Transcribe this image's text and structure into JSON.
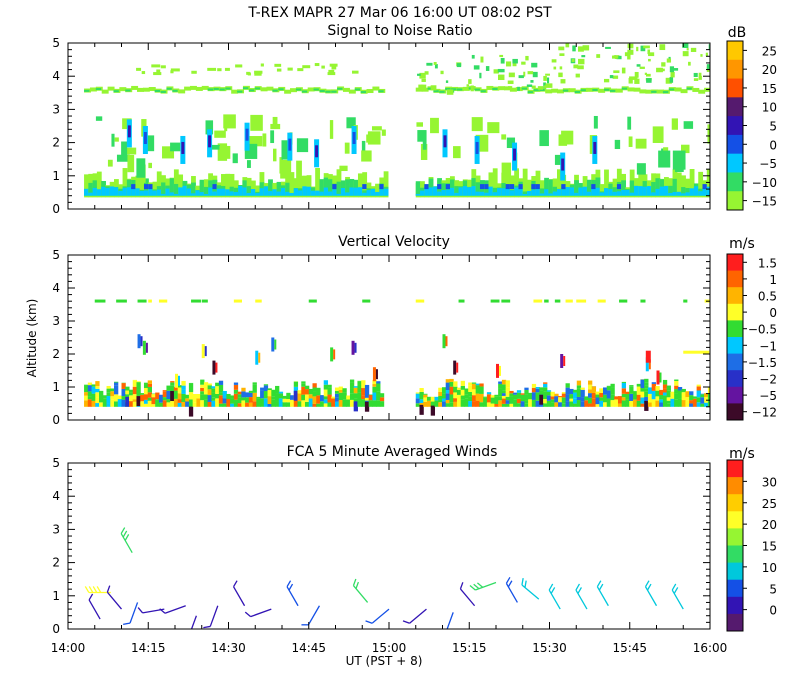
{
  "chart_data": {
    "type": "heatmap",
    "title": "T-REX   MAPR 27 Mar 06   16:00 UT   08:02   PST",
    "xlabel": "UT  (PST + 8)",
    "ylabel": "Altitude  (km)",
    "x_ticks": [
      "14:00",
      "14:15",
      "14:30",
      "14:45",
      "15:00",
      "15:15",
      "15:30",
      "15:45",
      "16:00"
    ],
    "y_ticks": [
      "0",
      "1",
      "2",
      "3",
      "4",
      "5"
    ],
    "xlim_minutes": [
      0,
      120
    ],
    "ylim_km": [
      0,
      5
    ],
    "panels": [
      {
        "title": "Signal to Noise Ratio",
        "unit": "dB",
        "colorbar": {
          "labels": [
            "25",
            "20",
            "15",
            "10",
            "5",
            "0",
            "−5",
            "−10",
            "−15"
          ],
          "colors": [
            "#ffc800",
            "#ff9600",
            "#ff5000",
            "#551a6e",
            "#3214b4",
            "#1450e6",
            "#00c8ff",
            "#32dc64",
            "#96f532"
          ]
        },
        "data_gap_minutes": [
          59,
          65
        ],
        "features": [
          {
            "label": "boundary layer echo",
            "alt_km": [
              0.4,
              1.3
            ],
            "value_db": -2
          },
          {
            "label": "cloud band",
            "alt_km": [
              3.5,
              3.7
            ],
            "value_db": -10
          },
          {
            "label": "upper level echoes",
            "alt_km": [
              3.8,
              5.0
            ],
            "value_db": -13
          }
        ]
      },
      {
        "title": "Vertical Velocity",
        "unit": "m/s",
        "colorbar": {
          "labels": [
            "1.5",
            "1",
            "0.5",
            "0",
            "−0.5",
            "−1",
            "−1.5",
            "−2",
            "−5",
            "−12"
          ],
          "colors": [
            "#ff1e1e",
            "#ff6400",
            "#ffb400",
            "#ffff28",
            "#32dc32",
            "#00c8ff",
            "#1e6ee6",
            "#2830c8",
            "#6414a0",
            "#3c0a28"
          ]
        },
        "data_gap_minutes": [
          59,
          65
        ]
      },
      {
        "title": "FCA 5 Minute Averaged Winds",
        "unit": "m/s",
        "colorbar": {
          "labels": [
            "30",
            "25",
            "20",
            "15",
            "10",
            "5",
            "0"
          ],
          "colors": [
            "#ff1e1e",
            "#ff8c00",
            "#ffcd00",
            "#ffff28",
            "#96f532",
            "#32dc64",
            "#00c8dc",
            "#1450e6",
            "#3214b4",
            "#551a6e"
          ]
        },
        "wind_barbs": [
          {
            "t": 6,
            "alt": 0.3,
            "speed": 5,
            "dir": 330
          },
          {
            "t": 8,
            "alt": 1.1,
            "speed": 20,
            "dir": 270
          },
          {
            "t": 10,
            "alt": 0.6,
            "speed": 5,
            "dir": 320
          },
          {
            "t": 12,
            "alt": 2.3,
            "speed": 13,
            "dir": 330
          },
          {
            "t": 13,
            "alt": 0.8,
            "speed": 6,
            "dir": 200
          },
          {
            "t": 18,
            "alt": 0.6,
            "speed": 5,
            "dir": 260
          },
          {
            "t": 22,
            "alt": 0.7,
            "speed": 4,
            "dir": 250
          },
          {
            "t": 24,
            "alt": 0.4,
            "speed": 4,
            "dir": 200
          },
          {
            "t": 28,
            "alt": 0.7,
            "speed": 5,
            "dir": 200
          },
          {
            "t": 33,
            "alt": 0.7,
            "speed": 4,
            "dir": 330
          },
          {
            "t": 38,
            "alt": 0.6,
            "speed": 5,
            "dir": 250
          },
          {
            "t": 43,
            "alt": 0.7,
            "speed": 8,
            "dir": 330
          },
          {
            "t": 47,
            "alt": 0.7,
            "speed": 7,
            "dir": 210
          },
          {
            "t": 56,
            "alt": 0.8,
            "speed": 12,
            "dir": 320
          },
          {
            "t": 60,
            "alt": 0.6,
            "speed": 6,
            "dir": 230
          },
          {
            "t": 67,
            "alt": 0.6,
            "speed": 5,
            "dir": 230
          },
          {
            "t": 72,
            "alt": 0.5,
            "speed": 6,
            "dir": 200
          },
          {
            "t": 76,
            "alt": 0.7,
            "speed": 5,
            "dir": 320
          },
          {
            "t": 80,
            "alt": 1.4,
            "speed": 13,
            "dir": 250
          },
          {
            "t": 84,
            "alt": 0.8,
            "speed": 8,
            "dir": 330
          },
          {
            "t": 88,
            "alt": 0.9,
            "speed": 10,
            "dir": 310
          },
          {
            "t": 92,
            "alt": 0.6,
            "speed": 9,
            "dir": 330
          },
          {
            "t": 97,
            "alt": 0.6,
            "speed": 11,
            "dir": 330
          },
          {
            "t": 101,
            "alt": 0.7,
            "speed": 10,
            "dir": 330
          },
          {
            "t": 110,
            "alt": 0.7,
            "speed": 10,
            "dir": 330
          },
          {
            "t": 115,
            "alt": 0.6,
            "speed": 10,
            "dir": 330
          }
        ]
      }
    ]
  }
}
